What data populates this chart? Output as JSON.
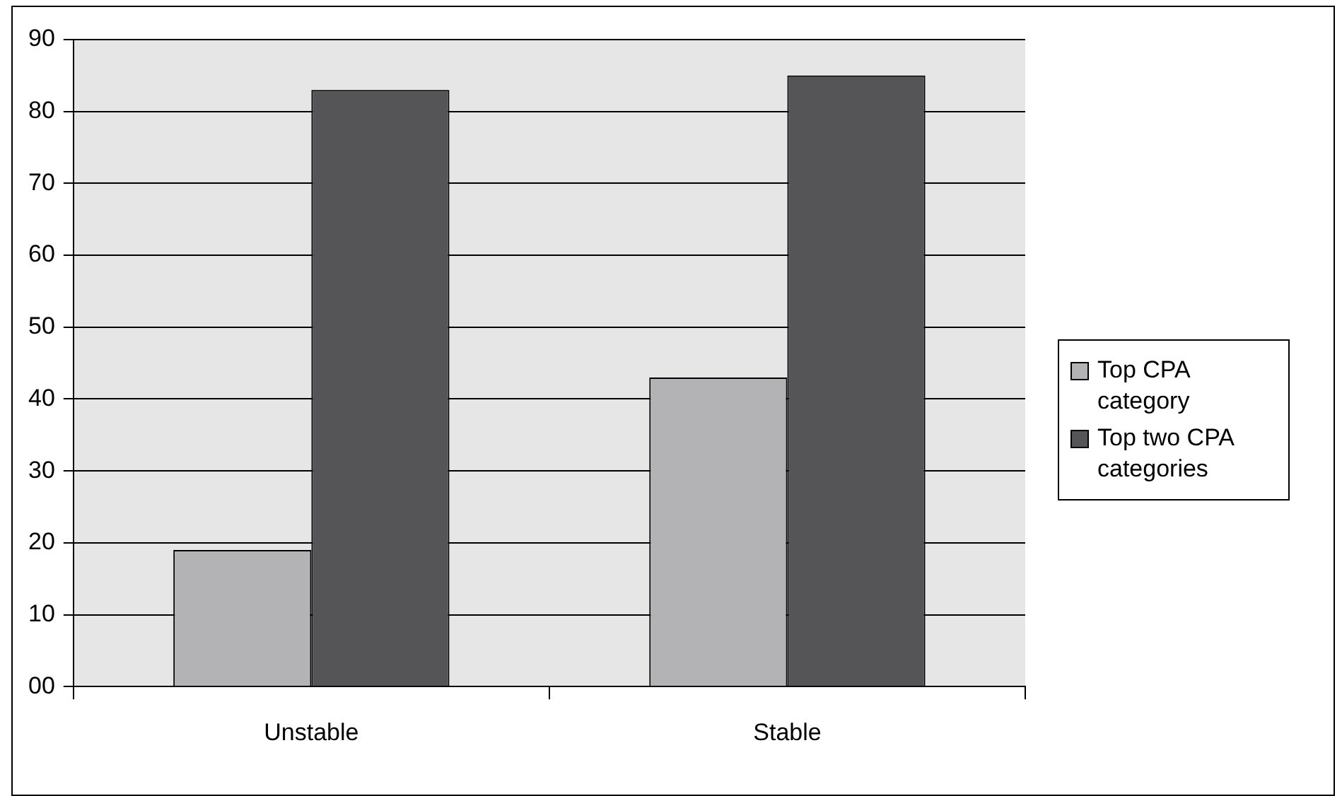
{
  "chart_data": {
    "type": "bar",
    "categories": [
      "Unstable",
      "Stable"
    ],
    "series": [
      {
        "name": "Top CPA category",
        "color": "#b3b3b5",
        "values": [
          19,
          43
        ]
      },
      {
        "name": "Top two CPA categories",
        "color": "#555558",
        "values": [
          83,
          85
        ]
      }
    ],
    "ylim": [
      0,
      90
    ],
    "yticks": [
      {
        "value": 0,
        "label": "00"
      },
      10,
      20,
      30,
      40,
      50,
      60,
      70,
      80,
      90
    ],
    "grid": "y",
    "legend": "right"
  }
}
